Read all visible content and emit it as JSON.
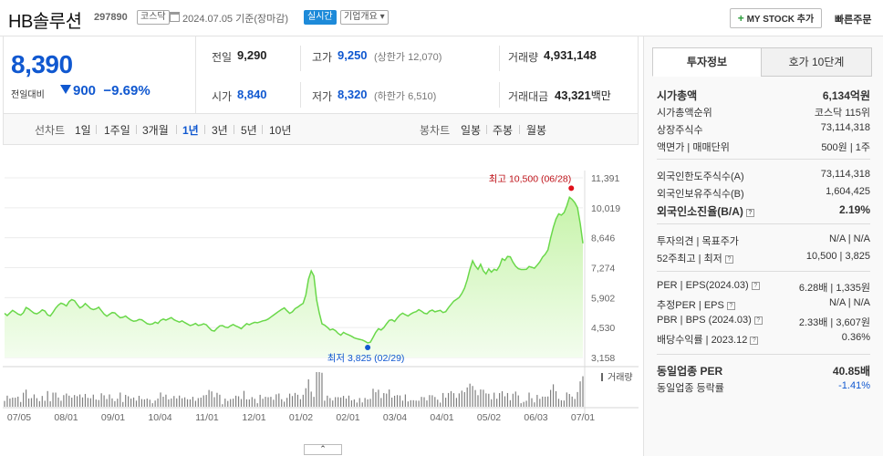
{
  "header": {
    "stock_name": "HB솔루션",
    "stock_code": "297890",
    "market_tag": "코스닥",
    "date_text": "2024.07.05 기준(장마감)",
    "live_tag": "실시간",
    "company_tag": "기업개요 ▾",
    "mystock_label": "MY STOCK 추가",
    "quick_order_label": "빠른주문"
  },
  "price": {
    "current": "8,390",
    "change_label": "전일대비",
    "change_amount": "900",
    "change_pct": "−9.69%",
    "direction": "down"
  },
  "ohl": {
    "prev_close_label": "전일",
    "prev_close": "9,290",
    "high_label": "고가",
    "high": "9,250",
    "upper_limit": "(상한가 12,070)",
    "volume_label": "거래량",
    "volume": "4,931,148",
    "open_label": "시가",
    "open": "8,840",
    "low_label": "저가",
    "low": "8,320",
    "lower_limit": "(하한가 6,510)",
    "amount_label": "거래대금",
    "amount": "43,321",
    "amount_unit": "백만"
  },
  "periods": {
    "line_chart_label": "선차트",
    "items": [
      "1일",
      "1주일",
      "3개월",
      "1년",
      "3년",
      "5년",
      "10년"
    ],
    "selected": "1년",
    "candle_chart_label": "봉차트",
    "candle_items": [
      "일봉",
      "주봉",
      "월봉"
    ]
  },
  "chart_data": {
    "type": "area",
    "y_ticks": [
      "11,391",
      "10,019",
      "8,646",
      "7,274",
      "5,902",
      "4,530",
      "3,158"
    ],
    "ylim": [
      3158,
      11391
    ],
    "x_ticks": [
      "07/05",
      "08/01",
      "09/01",
      "10/04",
      "11/01",
      "12/01",
      "01/02",
      "02/01",
      "03/04",
      "04/01",
      "05/02",
      "06/03",
      "07/01"
    ],
    "high_annotation": "최고 10,500 (06/28)",
    "low_annotation": "최저 3,825 (02/29)",
    "volume_label": "거래량",
    "colors": {
      "line": "#6ad84a",
      "fill_top": "#c6f3a9",
      "fill_bottom": "#f3fdee",
      "high_dot": "#e0101a",
      "low_dot": "#1058d0",
      "volume": "#7f7f7f"
    },
    "series": [
      {
        "values": [
          5180,
          5080,
          5200,
          5320,
          5240,
          5150,
          5100,
          5210,
          5450,
          5380,
          5280,
          5190,
          5160,
          5230,
          5340,
          5290,
          5110,
          5060,
          5230,
          5420,
          5560,
          5650,
          5600,
          5520,
          5720,
          5810,
          5760,
          5590,
          5430,
          5500,
          5630,
          5520,
          5400,
          5350,
          5390,
          5460,
          5300,
          5150,
          5050,
          5140,
          5220,
          5200,
          5080,
          4980,
          5000,
          5060,
          4960,
          4870,
          4820,
          4840,
          4900,
          4890,
          4800,
          4710,
          4680,
          4700,
          4780,
          4720,
          4860,
          4920,
          4870,
          4930,
          4990,
          4890,
          4830,
          4780,
          4840,
          4760,
          4690,
          4620,
          4660,
          4720,
          4630,
          4650,
          4700,
          4660,
          4520,
          4400,
          4370,
          4500,
          4610,
          4620,
          4550,
          4530,
          4610,
          4670,
          4600,
          4550,
          4480,
          4600,
          4710,
          4660,
          4720,
          4770,
          4750,
          4790,
          4840,
          4860,
          4920,
          5010,
          5100,
          5190,
          5280,
          5360,
          5430,
          5300,
          5180,
          5250,
          5400,
          5470,
          5560,
          5640,
          6030,
          6750,
          7130,
          6900,
          5800,
          5200,
          4700,
          4640,
          4540,
          4420,
          4460,
          4390,
          4260,
          4180,
          4310,
          4240,
          4190,
          4130,
          4060,
          4020,
          3990,
          3960,
          3900,
          3825,
          3860,
          4080,
          4310,
          4480,
          4420,
          4530,
          4700,
          4860,
          4890,
          4810,
          4970,
          5110,
          5190,
          5120,
          5060,
          5150,
          5220,
          5260,
          5350,
          5280,
          5190,
          5160,
          5280,
          5330,
          5250,
          5290,
          5320,
          5220,
          5260,
          5440,
          5590,
          5740,
          5820,
          5910,
          6090,
          6340,
          6720,
          7190,
          7590,
          7360,
          7200,
          7430,
          7130,
          6990,
          7220,
          7070,
          7200,
          7150,
          7350,
          7690,
          7610,
          7790,
          7770,
          7530,
          7340,
          7230,
          7190,
          7190,
          7200,
          7330,
          7290,
          7250,
          7390,
          7540,
          7760,
          7890,
          8090,
          8630,
          9120,
          9500,
          9740,
          9680,
          9800,
          10100,
          10500,
          10400,
          10250,
          10020,
          9290,
          8390
        ]
      }
    ]
  },
  "right_panel": {
    "tab_active": "투자정보",
    "tab_other": "호가 10단계",
    "rows1": [
      {
        "k": "시가총액",
        "v": "6,134억원",
        "bold": true
      },
      {
        "k": "시가총액순위",
        "v": "코스닥 115위"
      },
      {
        "k": "상장주식수",
        "v": "73,114,318"
      },
      {
        "k": "액면가 | 매매단위",
        "v": "500원 | 1주"
      }
    ],
    "rows2": [
      {
        "k": "외국인한도주식수(A)",
        "v": "73,114,318"
      },
      {
        "k": "외국인보유주식수(B)",
        "v": "1,604,425"
      },
      {
        "k": "외국인소진율(B/A)",
        "v": "2.19%",
        "bold": true
      }
    ],
    "rows3": [
      {
        "k": "투자의견 | 목표주가",
        "v": "N/A | N/A"
      },
      {
        "k": "52주최고 | 최저",
        "v": "10,500 | 3,825"
      }
    ],
    "rows4": [
      {
        "k": "PER | EPS(2024.03)",
        "v": "6.28배 | 1,335원"
      },
      {
        "k": "추정PER | EPS",
        "v": "N/A | N/A"
      },
      {
        "k": "PBR | BPS (2024.03)",
        "v": "2.33배 | 3,607원"
      },
      {
        "k": "배당수익률 | 2023.12",
        "v": "0.36%"
      }
    ],
    "rows5": [
      {
        "k": "동일업종 PER",
        "v": "40.85배",
        "bold": true
      },
      {
        "k": "동일업종 등락률",
        "v": "-1.41%",
        "blue": true
      }
    ]
  },
  "collapse_label": "⌃"
}
